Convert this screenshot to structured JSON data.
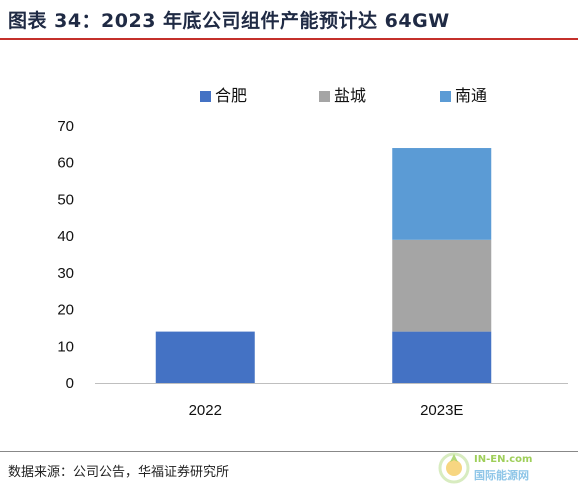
{
  "title": "图表 34：2023 年底公司组件产能预计达 64GW",
  "source": "数据来源：公司公告，华福证券研究所",
  "watermark": {
    "top": "IN-EN.com",
    "bottom": "国际能源网"
  },
  "colors": {
    "合肥": "#4472c4",
    "盐城": "#a5a5a5",
    "南通": "#5b9bd5",
    "title_rule": "#c4302b"
  },
  "chart_data": {
    "type": "bar",
    "stacked": true,
    "categories": [
      "2022",
      "2023E"
    ],
    "series": [
      {
        "name": "合肥",
        "values": [
          14,
          14
        ]
      },
      {
        "name": "盐城",
        "values": [
          0,
          25
        ]
      },
      {
        "name": "南通",
        "values": [
          0,
          25
        ]
      }
    ],
    "ylim": [
      0,
      70
    ],
    "yticks": [
      0,
      10,
      20,
      30,
      40,
      50,
      60,
      70
    ],
    "legend": "top-center",
    "grid": false,
    "xlabel": "",
    "ylabel": ""
  }
}
